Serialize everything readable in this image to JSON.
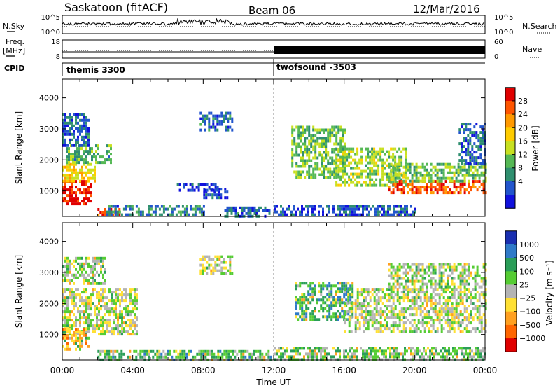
{
  "header": {
    "station": "Saskatoon (fitACF)",
    "beam": "Beam 06",
    "date": "12/Mar/2016"
  },
  "top_panels": {
    "nsky_label": "N.Sky",
    "nsky_ticks": [
      "10^5",
      "10^0"
    ],
    "nsearch_label": "N.Search",
    "nsearch_ticks": [
      "10^5",
      "10^0"
    ],
    "freq_label_1": "Freq.",
    "freq_label_2": "[MHz]",
    "freq_ticks": [
      "18",
      "8"
    ],
    "nave_label": "Nave",
    "nave_ticks": [
      "60",
      "0"
    ],
    "cpid_label": "CPID",
    "cpid_segments": [
      {
        "name": "themis 3300",
        "start_hour": 0
      },
      {
        "name": "twofsound -3503",
        "start_hour": 12
      }
    ]
  },
  "chart_data": [
    {
      "type": "heatmap",
      "name": "power-panel",
      "ylabel": "Slant Range [km]",
      "ylim": [
        180,
        4600
      ],
      "yticks": [
        1000,
        2000,
        3000,
        4000
      ],
      "xlim": [
        0,
        24
      ],
      "colorbar": {
        "label": "Power [dB]",
        "ticks": [
          "28",
          "24",
          "20",
          "16",
          "12",
          "8",
          "4"
        ],
        "colors": [
          "#e00000",
          "#ff5500",
          "#ff9900",
          "#ffcc00",
          "#c8e020",
          "#55b855",
          "#2f8f6f",
          "#2255cc",
          "#1111dd"
        ]
      },
      "regions": [
        {
          "h0": 0.0,
          "h1": 1.6,
          "r0": 550,
          "r1": 1350,
          "level": 0.95
        },
        {
          "h0": 0.0,
          "h1": 1.9,
          "r0": 1350,
          "r1": 1900,
          "level": 0.6
        },
        {
          "h0": 0.2,
          "h1": 2.8,
          "r0": 1900,
          "r1": 2500,
          "level": 0.35
        },
        {
          "h0": 0.0,
          "h1": 1.5,
          "r0": 2500,
          "r1": 3500,
          "level": 0.2
        },
        {
          "h0": 2.0,
          "h1": 3.3,
          "r0": 250,
          "r1": 450,
          "level": 0.85
        },
        {
          "h0": 2.5,
          "h1": 8.0,
          "r0": 200,
          "r1": 550,
          "level": 0.25
        },
        {
          "h0": 7.8,
          "h1": 9.6,
          "r0": 3000,
          "r1": 3550,
          "level": 0.22
        },
        {
          "h0": 8.0,
          "h1": 9.4,
          "r0": 750,
          "r1": 1100,
          "level": 0.15
        },
        {
          "h0": 6.5,
          "h1": 8.8,
          "r0": 1000,
          "r1": 1250,
          "level": 0.12
        },
        {
          "h0": 9.2,
          "h1": 11.8,
          "r0": 200,
          "r1": 500,
          "level": 0.2
        },
        {
          "h0": 13.0,
          "h1": 16.0,
          "r0": 1400,
          "r1": 3100,
          "level": 0.4
        },
        {
          "h0": 15.5,
          "h1": 19.5,
          "r0": 1200,
          "r1": 2400,
          "level": 0.45
        },
        {
          "h0": 18.5,
          "h1": 24.0,
          "r0": 900,
          "r1": 1350,
          "level": 0.82
        },
        {
          "h0": 18.5,
          "h1": 24.0,
          "r0": 1350,
          "r1": 1900,
          "level": 0.42
        },
        {
          "h0": 22.5,
          "h1": 24.0,
          "r0": 1900,
          "r1": 3200,
          "level": 0.2
        },
        {
          "h0": 12.0,
          "h1": 20.0,
          "r0": 200,
          "r1": 550,
          "level": 0.15
        }
      ]
    },
    {
      "type": "heatmap",
      "name": "velocity-panel",
      "ylabel": "Slant Range [km]",
      "xlabel": "Time UT",
      "ylim": [
        180,
        4600
      ],
      "yticks": [
        1000,
        2000,
        3000,
        4000
      ],
      "xlim": [
        0,
        24
      ],
      "xticks": [
        "00:00",
        "04:00",
        "08:00",
        "12:00",
        "16:00",
        "20:00",
        "00:00"
      ],
      "colorbar": {
        "label": "Velocity [m s⁻¹]",
        "ticks": [
          "1000",
          "500",
          "100",
          "25",
          "−25",
          "−100",
          "−500",
          "−1000"
        ],
        "colors": [
          "#1a2fb0",
          "#2f7ac8",
          "#2a9e58",
          "#55cc33",
          "#b4b4b4",
          "#ffe033",
          "#ffa020",
          "#ff6600",
          "#e00000"
        ]
      },
      "regions": [
        {
          "h0": 0.0,
          "h1": 4.2,
          "r0": 1000,
          "r1": 2500,
          "level": 0.5
        },
        {
          "h0": 0.0,
          "h1": 1.5,
          "r0": 550,
          "r1": 1200,
          "level": 0.3
        },
        {
          "h0": 0.0,
          "h1": 2.5,
          "r0": 2600,
          "r1": 3500,
          "level": 0.55
        },
        {
          "h0": 7.8,
          "h1": 9.6,
          "r0": 3000,
          "r1": 3550,
          "level": 0.5
        },
        {
          "h0": 2.0,
          "h1": 11.8,
          "r0": 200,
          "r1": 500,
          "level": 0.65
        },
        {
          "h0": 13.2,
          "h1": 16.5,
          "r0": 1500,
          "r1": 2700,
          "level": 0.72
        },
        {
          "h0": 16.0,
          "h1": 24.0,
          "r0": 1100,
          "r1": 2500,
          "level": 0.5
        },
        {
          "h0": 12.0,
          "h1": 24.0,
          "r0": 200,
          "r1": 600,
          "level": 0.62
        },
        {
          "h0": 18.5,
          "h1": 24.0,
          "r0": 2500,
          "r1": 3300,
          "level": 0.55
        }
      ]
    }
  ]
}
